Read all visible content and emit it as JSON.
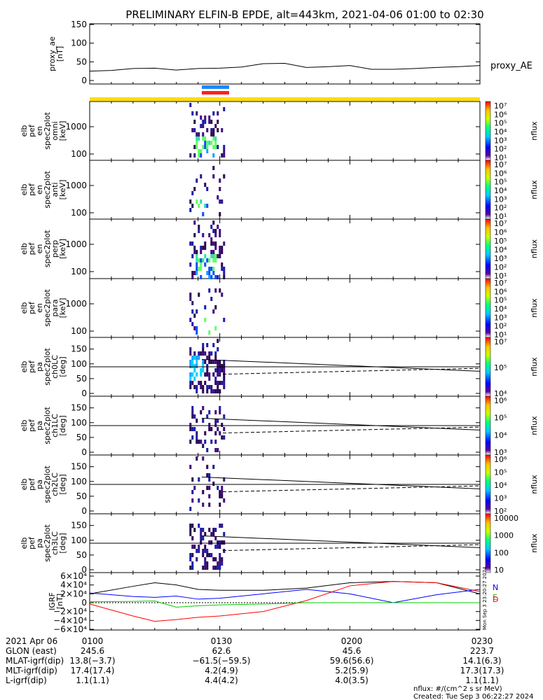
{
  "title": "PRELIMINARY ELFIN-B EPDE, alt=443km, 2021-04-06 01:00 to 02:30",
  "panels": [
    {
      "ylabel": [
        "proxy_ae",
        "[nT]"
      ],
      "ticks": [
        "150",
        "100",
        "50",
        "0"
      ],
      "right_label": "proxy_AE"
    },
    {
      "ylabel": [
        "elb",
        "pef",
        "en",
        "spec2plot",
        "omni",
        "[keV]"
      ],
      "ticks": [
        "1000",
        "100"
      ],
      "cb_label": "nflux"
    },
    {
      "ylabel": [
        "elb",
        "pef",
        "en",
        "spec2plot",
        "anti",
        "[keV]"
      ],
      "ticks": [
        "1000",
        "100"
      ],
      "cb_label": "nflux"
    },
    {
      "ylabel": [
        "elb",
        "pef",
        "en",
        "spec2plot",
        "perp",
        "[keV]"
      ],
      "ticks": [
        "1000",
        "100"
      ],
      "cb_label": "nflux"
    },
    {
      "ylabel": [
        "elb",
        "pef",
        "en",
        "spec2plot",
        "para",
        "[keV]"
      ],
      "ticks": [
        "1000",
        "100"
      ],
      "cb_label": "nflux"
    },
    {
      "ylabel": [
        "elb",
        "pef",
        "pa",
        "spec2plot",
        "ch0LC",
        "[deg]"
      ],
      "ticks": [
        "150",
        "100",
        "50",
        "0"
      ],
      "cb_label": "nflux"
    },
    {
      "ylabel": [
        "elb",
        "pef",
        "pa",
        "spec2plot",
        "ch1LC",
        "[deg]"
      ],
      "ticks": [
        "150",
        "100",
        "50",
        "0"
      ],
      "cb_label": "nflux"
    },
    {
      "ylabel": [
        "elb",
        "pef",
        "pa",
        "spec2plot",
        "ch2LC",
        "[deg]"
      ],
      "ticks": [
        "150",
        "100",
        "50",
        "0"
      ],
      "cb_label": "nflux"
    },
    {
      "ylabel": [
        "elb",
        "pef",
        "pa",
        "spec2plot",
        "ch3LC",
        "[deg]"
      ],
      "ticks": [
        "150",
        "100",
        "50",
        "0"
      ],
      "cb_label": "nflux"
    },
    {
      "ylabel": [
        "IGRF",
        "[nT]"
      ],
      "ticks": [
        "6×10⁴",
        "4×10⁴",
        "2×10⁴",
        "0",
        "−2×10⁴",
        "−4×10⁴",
        "−6×10⁴"
      ],
      "legend": [
        "N",
        "E",
        "D"
      ]
    }
  ],
  "colorbars": [
    {
      "ticks": [
        "10⁷",
        "10⁶",
        "10⁵",
        "10⁴",
        "10³",
        "10²",
        "10¹"
      ]
    },
    {
      "ticks": [
        "10⁷",
        "10⁶",
        "10⁵",
        "10⁴",
        "10³",
        "10²",
        "10¹"
      ]
    },
    {
      "ticks": [
        "10⁷",
        "10⁶",
        "10⁵",
        "10⁴",
        "10³",
        "10²",
        "10¹"
      ]
    },
    {
      "ticks": [
        "10⁷",
        "10⁶",
        "10⁵",
        "10⁴",
        "10³",
        "10²",
        "10¹"
      ]
    },
    {
      "ticks": [
        "10⁷",
        "10⁵",
        "10⁴"
      ]
    },
    {
      "ticks": [
        "10⁶",
        "10⁵",
        "10⁴",
        "10³"
      ]
    },
    {
      "ticks": [
        "10⁶",
        "10⁵",
        "10⁴",
        "10³",
        "10²"
      ]
    },
    {
      "ticks": [
        "10000",
        "1000",
        "100",
        "10"
      ]
    }
  ],
  "timestamp_vertical": "Mon Sep  3 23:20:27 2024",
  "footer_rows": [
    {
      "label": "2021 Apr 06",
      "values": [
        "0100",
        "0130",
        "0200",
        "0230"
      ]
    },
    {
      "label": "GLON (east)",
      "values": [
        "245.6",
        "62.6",
        "45.6",
        "223.7"
      ]
    },
    {
      "label": "MLAT-igrf(dip)",
      "values": [
        "13.8(−3.7)",
        "−61.5(−59.5)",
        "59.6(56.6)",
        "14.1(6.3)"
      ]
    },
    {
      "label": "MLT-igrf(dip)",
      "values": [
        "17.4(17.4)",
        "4.2(4.9)",
        "5.2(5.9)",
        "17.3(17.3)"
      ]
    },
    {
      "label": "L-igrf(dip)",
      "values": [
        "1.1(1.1)",
        "4.4(4.2)",
        "4.0(3.5)",
        "1.1(1.1)"
      ]
    }
  ],
  "footnote": "nflux: #/(cm^2 s sr MeV)",
  "created": "Created: Tue Sep  3 06:22:27 2024",
  "chart_data": {
    "type": "line",
    "x_range": [
      "2021-04-06 01:00",
      "2021-04-06 02:30"
    ],
    "proxy_ae": {
      "x": [
        "01:00",
        "01:05",
        "01:10",
        "01:15",
        "01:20",
        "01:25",
        "01:30",
        "01:35",
        "01:40",
        "01:45",
        "01:50",
        "01:55",
        "02:00",
        "02:05",
        "02:10",
        "02:15",
        "02:20",
        "02:25",
        "02:30"
      ],
      "values": [
        25,
        27,
        32,
        33,
        28,
        32,
        33,
        36,
        45,
        46,
        35,
        37,
        40,
        30,
        30,
        32,
        35,
        37,
        40
      ],
      "ylim": [
        0,
        150
      ]
    },
    "igrf": {
      "x": [
        "01:00",
        "01:10",
        "01:15",
        "01:20",
        "01:25",
        "01:30",
        "01:40",
        "01:50",
        "02:00",
        "02:10",
        "02:20",
        "02:30"
      ],
      "series": [
        {
          "name": "N",
          "color": "#000000",
          "values": [
            20000,
            37000,
            45000,
            40000,
            30000,
            28000,
            28000,
            33000,
            45000,
            48000,
            45000,
            20000
          ]
        },
        {
          "name": "E",
          "color": "#0000ff",
          "values": [
            22000,
            14000,
            12000,
            15000,
            8000,
            10000,
            20000,
            30000,
            20000,
            0,
            18000,
            30000
          ]
        },
        {
          "name": "D",
          "color": "#ff0000",
          "values": [
            -3000,
            -30000,
            -42000,
            -38000,
            -33000,
            -30000,
            -20000,
            5000,
            38000,
            48000,
            45000,
            25000
          ]
        },
        {
          "name": "",
          "color": "#00cc00",
          "values": [
            2000,
            3000,
            4000,
            -10000,
            -7000,
            -5000,
            -3000,
            0,
            0,
            0,
            0,
            0
          ]
        }
      ],
      "ylim": [
        -60000,
        60000
      ]
    },
    "science_zone": {
      "start": "01:23",
      "end": "01:31"
    }
  }
}
